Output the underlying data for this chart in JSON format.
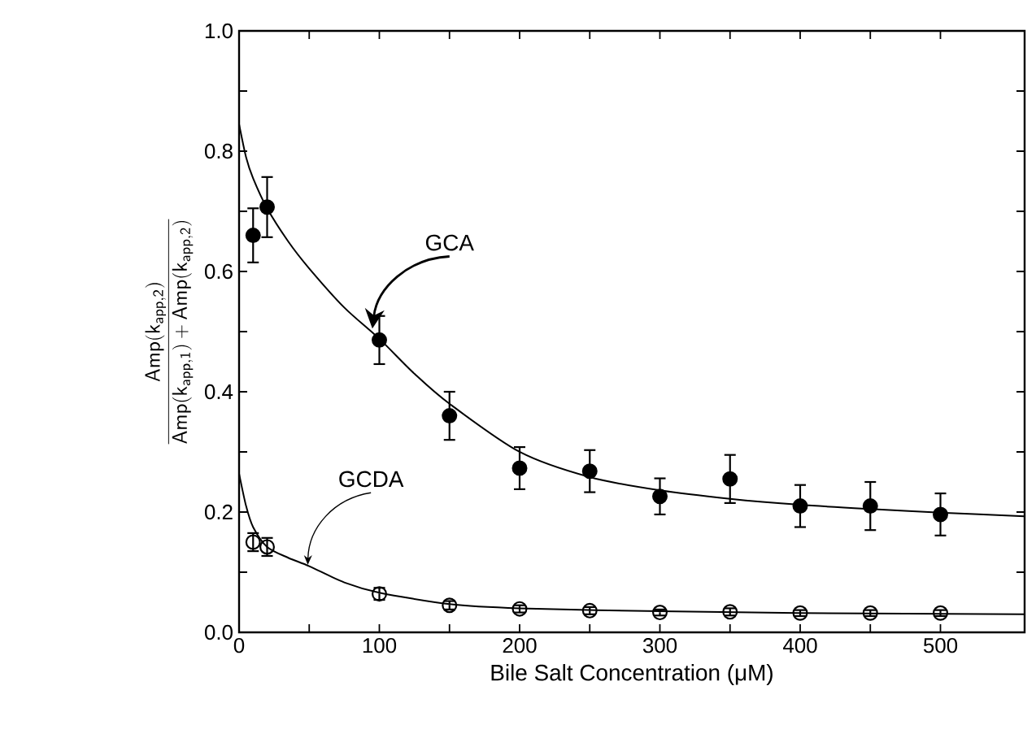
{
  "chart_data": {
    "type": "scatter",
    "xlabel": "Bile Salt Concentration (μM)",
    "ylabel": "\\frac{\\mathsf{Amp}(\\mathsf{k}_{\\mathsf{app,2}})}{\\mathsf{Amp}(\\mathsf{k}_{\\mathsf{app,1}})+\\mathsf{Amp}(\\mathsf{k}_{\\mathsf{app,2}})}",
    "xlim": [
      0,
      560
    ],
    "xticks": [
      0,
      {
        "value": 50,
        "label": null
      },
      100,
      {
        "value": 150,
        "label": null
      },
      200,
      {
        "value": 250,
        "label": null
      },
      300,
      {
        "value": 350,
        "label": null
      },
      400,
      {
        "value": 450,
        "label": null
      },
      500
    ],
    "ylim": [
      0,
      1.0
    ],
    "yticks": [
      {
        "value": 0,
        "label": "0.0"
      },
      {
        "value": 0.1,
        "label": null
      },
      0.2,
      {
        "value": 0.3,
        "label": null
      },
      0.4,
      {
        "value": 0.5,
        "label": null
      },
      0.6,
      {
        "value": 0.7,
        "label": null
      },
      0.8,
      {
        "value": 0.9,
        "label": null
      },
      {
        "value": 1.0,
        "label": "1.0"
      }
    ],
    "series": [
      {
        "type": "scatter",
        "color": "#000000",
        "marker": "circle",
        "x": [
          10,
          20,
          100,
          150,
          200,
          250,
          300,
          350,
          400,
          450,
          500
        ],
        "values": [
          0.66,
          0.707,
          0.486,
          0.36,
          0.273,
          0.268,
          0.226,
          0.255,
          0.21,
          0.21,
          0.196
        ],
        "errors": [
          0.045,
          0.05,
          0.04,
          0.04,
          0.035,
          0.035,
          0.03,
          0.04,
          0.035,
          0.04,
          0.035
        ]
      },
      {
        "type": "scatter",
        "color": "#000000",
        "marker": "circle-open",
        "x": [
          10,
          20,
          100,
          150,
          200,
          250,
          300,
          350,
          400,
          450,
          500
        ],
        "values": [
          0.15,
          0.142,
          0.064,
          0.045,
          0.039,
          0.036,
          0.033,
          0.034,
          0.032,
          0.032,
          0.032
        ],
        "errors": [
          0.015,
          0.015,
          0.01,
          0.007,
          0.006,
          0.006,
          0.005,
          0.006,
          0.005,
          0.005,
          0.005
        ]
      },
      {
        "type": "line",
        "color": "#000000",
        "x": [
          0,
          5,
          10,
          20,
          35,
          50,
          75,
          100,
          125,
          150,
          200,
          250,
          300,
          350,
          400,
          450,
          500,
          560
        ],
        "values": [
          0.845,
          0.79,
          0.755,
          0.705,
          0.65,
          0.605,
          0.54,
          0.488,
          0.43,
          0.38,
          0.3,
          0.258,
          0.236,
          0.222,
          0.212,
          0.205,
          0.199,
          0.193
        ]
      },
      {
        "type": "line",
        "color": "#000000",
        "x": [
          0,
          5,
          10,
          20,
          35,
          50,
          75,
          100,
          150,
          200,
          300,
          400,
          560
        ],
        "values": [
          0.264,
          0.21,
          0.175,
          0.142,
          0.124,
          0.11,
          0.083,
          0.066,
          0.047,
          0.04,
          0.035,
          0.032,
          0.03
        ]
      }
    ],
    "annotations": [
      {
        "text": "GCA",
        "x": 95,
        "y": 0.505
      },
      {
        "text": "GCDA",
        "x": 49,
        "y": 0.112
      }
    ]
  }
}
